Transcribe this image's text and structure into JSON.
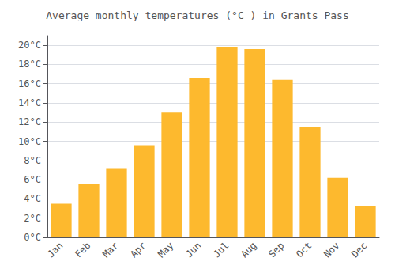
{
  "chart_data": {
    "type": "bar",
    "title": "Average monthly temperatures (°C ) in Grants Pass",
    "categories": [
      "Jan",
      "Feb",
      "Mar",
      "Apr",
      "May",
      "Jun",
      "Jul",
      "Aug",
      "Sep",
      "Oct",
      "Nov",
      "Dec"
    ],
    "values": [
      3.5,
      5.6,
      7.2,
      9.6,
      13.0,
      16.6,
      19.8,
      19.6,
      16.4,
      11.5,
      6.2,
      3.3
    ],
    "color": "#FDB92E",
    "ylim": [
      0,
      21
    ],
    "yticks": [
      {
        "value": 0,
        "label": "0°C"
      },
      {
        "value": 2,
        "label": "2°C"
      },
      {
        "value": 4,
        "label": "4°C"
      },
      {
        "value": 6,
        "label": "6°C"
      },
      {
        "value": 8,
        "label": "8°C"
      },
      {
        "value": 10,
        "label": "10°C"
      },
      {
        "value": 12,
        "label": "12°C"
      },
      {
        "value": 14,
        "label": "14°C"
      },
      {
        "value": 16,
        "label": "16°C"
      },
      {
        "value": 18,
        "label": "18°C"
      },
      {
        "value": 20,
        "label": "20°C"
      }
    ],
    "grid": true
  }
}
